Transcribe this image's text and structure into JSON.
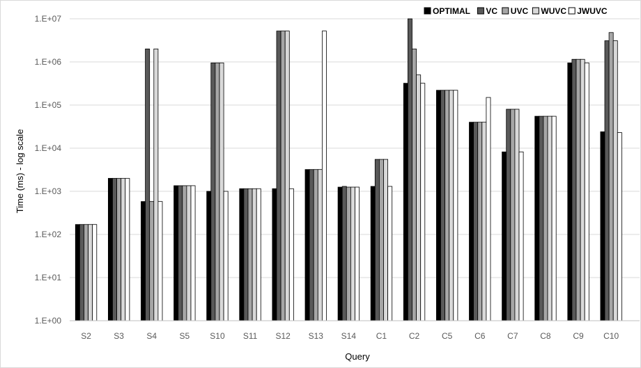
{
  "chart_data": {
    "type": "bar",
    "title": "",
    "xlabel": "Query",
    "ylabel": "Time (ms) - log scale",
    "y_scale": "log",
    "ylim": [
      1,
      10000000
    ],
    "y_tick_labels": [
      "1.E+00",
      "1.E+01",
      "1.E+02",
      "1.E+03",
      "1.E+04",
      "1.E+05",
      "1.E+06",
      "1.E+07"
    ],
    "grid": true,
    "legend_position": "top-right",
    "categories": [
      "S2",
      "S3",
      "S4",
      "S5",
      "S10",
      "S11",
      "S12",
      "S13",
      "S14",
      "C1",
      "C2",
      "C5",
      "C6",
      "C7",
      "C8",
      "C9",
      "C10"
    ],
    "series": [
      {
        "name": "OPTIMAL",
        "color": "#000000",
        "values": [
          170,
          2000,
          580,
          1350,
          1000,
          1150,
          1150,
          3200,
          1250,
          1300,
          320000,
          220000,
          40000,
          8200,
          55000,
          950000,
          24000
        ]
      },
      {
        "name": "VC",
        "color": "#595959",
        "values": [
          170,
          2000,
          2000000,
          1350,
          950000,
          1150,
          5200000,
          3200,
          1300,
          5500,
          10000000,
          220000,
          40000,
          80000,
          55000,
          1150000,
          3100000
        ]
      },
      {
        "name": "UVC",
        "color": "#a6a6a6",
        "values": [
          170,
          2000,
          580,
          1350,
          950000,
          1150,
          5200000,
          3200,
          1250,
          5500,
          2000000,
          220000,
          40000,
          80000,
          55000,
          1150000,
          4800000
        ]
      },
      {
        "name": "WUVC",
        "color": "#d9d9d9",
        "values": [
          170,
          2000,
          2000000,
          1350,
          950000,
          1150,
          5200000,
          3200,
          1250,
          5500,
          500000,
          220000,
          40000,
          80000,
          55000,
          1150000,
          3100000
        ]
      },
      {
        "name": "JWUVC",
        "color": "#ffffff",
        "values": [
          170,
          2000,
          580,
          1350,
          1000,
          1150,
          1150,
          5200000,
          1250,
          1300,
          320000,
          220000,
          150000,
          8200,
          55000,
          950000,
          23000
        ]
      }
    ]
  }
}
